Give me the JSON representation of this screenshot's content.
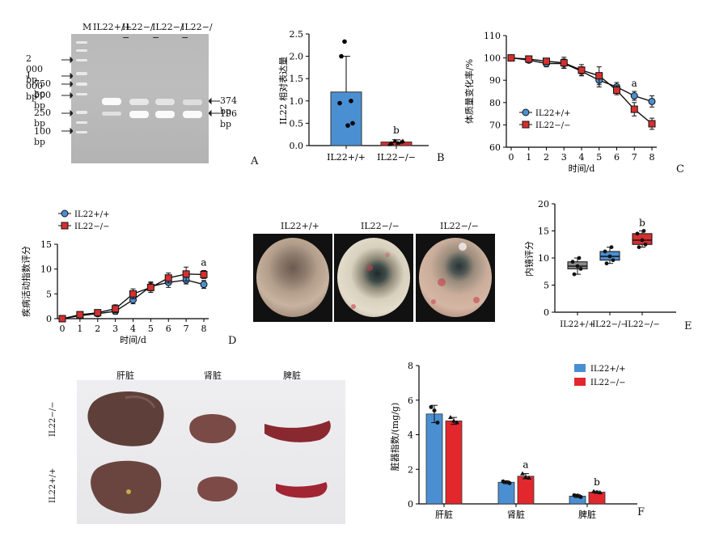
{
  "panels": {
    "A": {
      "letter": "A",
      "lanes": [
        "M",
        "IL22+/+",
        "IL22−/−",
        "IL22−/−",
        "IL22−/−"
      ],
      "ladder": [
        "2 000 bp",
        "1 000 bp",
        "750 bp",
        "500 bp",
        "250 bp",
        "100 bp"
      ],
      "bands": [
        "374 bp",
        "196 bp"
      ]
    },
    "B": {
      "letter": "B"
    },
    "C": {
      "letter": "C"
    },
    "D": {
      "letter": "D",
      "images": [
        "IL22+/+",
        "IL22−/−",
        "IL22−/−"
      ]
    },
    "E": {
      "letter": "E"
    },
    "F": {
      "letter": "F",
      "photo_rows": [
        "IL22−/−",
        "IL22+/+"
      ],
      "photo_cols": [
        "肝脏",
        "肾脏",
        "脾脏"
      ]
    }
  },
  "chart_data": [
    {
      "panel": "B",
      "type": "bar",
      "categories": [
        "IL22+/+",
        "IL22−/−"
      ],
      "values": [
        1.2,
        0.08
      ],
      "errors": [
        0.8,
        0.05
      ],
      "points": [
        [
          2.33,
          2.0,
          1.0,
          0.95,
          0.5,
          0.45
        ],
        [
          0.1,
          0.05,
          0.08,
          0.03,
          0.1,
          0.06
        ]
      ],
      "colors": [
        "#4b8fd3",
        "#d62f2f"
      ],
      "ylabel": "IL22 相对表达量",
      "ylim": [
        0,
        2.5
      ],
      "yticks": [
        0,
        0.5,
        1.0,
        1.5,
        2.0,
        2.5
      ],
      "annotations": [
        {
          "category": "IL22−/−",
          "text": "b"
        }
      ]
    },
    {
      "panel": "C",
      "type": "line",
      "x": [
        0,
        1,
        2,
        3,
        4,
        5,
        6,
        7,
        8
      ],
      "series": [
        {
          "name": "IL22+/+",
          "color": "#4b8fd3",
          "marker": "circle",
          "values": [
            100,
            99,
            97.5,
            97.5,
            94,
            90,
            87,
            83,
            80.5
          ],
          "errors": [
            0,
            1,
            1.5,
            2,
            2,
            3,
            2,
            2,
            2.5
          ]
        },
        {
          "name": "IL22−/−",
          "color": "#d62f2f",
          "marker": "square",
          "values": [
            100,
            99.5,
            98.5,
            97.8,
            94.5,
            92,
            85.5,
            77,
            70.5
          ],
          "errors": [
            0,
            1,
            1,
            2.5,
            2.5,
            4,
            2,
            3,
            2.5
          ]
        }
      ],
      "xlabel": "时间/d",
      "ylabel": "体质量变化率/%",
      "xlim": [
        0,
        8
      ],
      "ylim": [
        60,
        110
      ],
      "yticks": [
        60,
        70,
        80,
        90,
        100,
        110
      ],
      "annotations": [
        {
          "x": 7,
          "text": "a"
        }
      ]
    },
    {
      "panel": "D",
      "type": "line",
      "x": [
        0,
        1,
        2,
        3,
        4,
        5,
        6,
        7,
        8
      ],
      "series": [
        {
          "name": "IL22+/+",
          "color": "#4b8fd3",
          "marker": "circle",
          "values": [
            0,
            0.6,
            1.0,
            1.5,
            3.8,
            6.5,
            7.3,
            7.8,
            6.9
          ],
          "errors": [
            0,
            0.3,
            0.5,
            0.6,
            0.8,
            0.9,
            1.0,
            0.8,
            0.8
          ]
        },
        {
          "name": "IL22−/−",
          "color": "#d62f2f",
          "marker": "square",
          "values": [
            0,
            0.8,
            1.2,
            2.0,
            5.0,
            6.3,
            8.2,
            9.0,
            8.9
          ],
          "errors": [
            0,
            0.3,
            0.5,
            0.8,
            1.0,
            1.0,
            1.0,
            1.4,
            0.8
          ]
        }
      ],
      "xlabel": "时间/d",
      "ylabel": "疾病活动指数评分",
      "xlim": [
        0,
        8
      ],
      "ylim": [
        0,
        15
      ],
      "yticks": [
        0,
        5,
        10,
        15
      ],
      "annotations": [
        {
          "x": 8,
          "text": "a"
        }
      ]
    },
    {
      "panel": "E",
      "type": "box",
      "categories": [
        "IL22+/+",
        "IL22−/−",
        "IL22−/−"
      ],
      "boxes": [
        {
          "min": 7,
          "q1": 8,
          "median": 8.5,
          "q3": 9.3,
          "max": 10,
          "color": "#8a8a8a"
        },
        {
          "min": 9,
          "q1": 9.6,
          "median": 10.3,
          "q3": 11.2,
          "max": 12,
          "color": "#4b8fd3"
        },
        {
          "min": 12,
          "q1": 12.5,
          "median": 13.3,
          "q3": 14.5,
          "max": 15,
          "color": "#d62f2f"
        }
      ],
      "ylabel": "内镜评分",
      "ylim": [
        0,
        20
      ],
      "yticks": [
        0,
        5,
        10,
        15,
        20
      ],
      "annotations": [
        {
          "category": 2,
          "text": "b"
        }
      ]
    },
    {
      "panel": "F",
      "type": "bar",
      "categories": [
        "肝脏",
        "肾脏",
        "脾脏"
      ],
      "series": [
        {
          "name": "IL22+/+",
          "color": "#4b8fd3",
          "values": [
            5.2,
            1.25,
            0.45
          ],
          "errors": [
            0.5,
            0.08,
            0.08
          ],
          "points": [
            [
              5.6,
              5.4,
              4.7
            ],
            [
              1.3,
              1.25,
              1.2
            ],
            [
              0.5,
              0.48,
              0.4
            ]
          ]
        },
        {
          "name": "IL22−/−",
          "color": "#e2282d",
          "values": [
            4.8,
            1.6,
            0.68
          ],
          "errors": [
            0.2,
            0.15,
            0.06
          ],
          "points": [
            [
              5.0,
              4.8,
              4.7
            ],
            [
              1.75,
              1.55,
              1.5
            ],
            [
              0.72,
              0.68,
              0.65
            ]
          ]
        }
      ],
      "ylabel": "脏器指数/(mg/g)",
      "ylim": [
        0,
        8
      ],
      "yticks": [
        0,
        2,
        4,
        6,
        8
      ],
      "annotations": [
        {
          "category": 1,
          "text": "a"
        },
        {
          "category": 2,
          "text": "b"
        }
      ]
    }
  ]
}
